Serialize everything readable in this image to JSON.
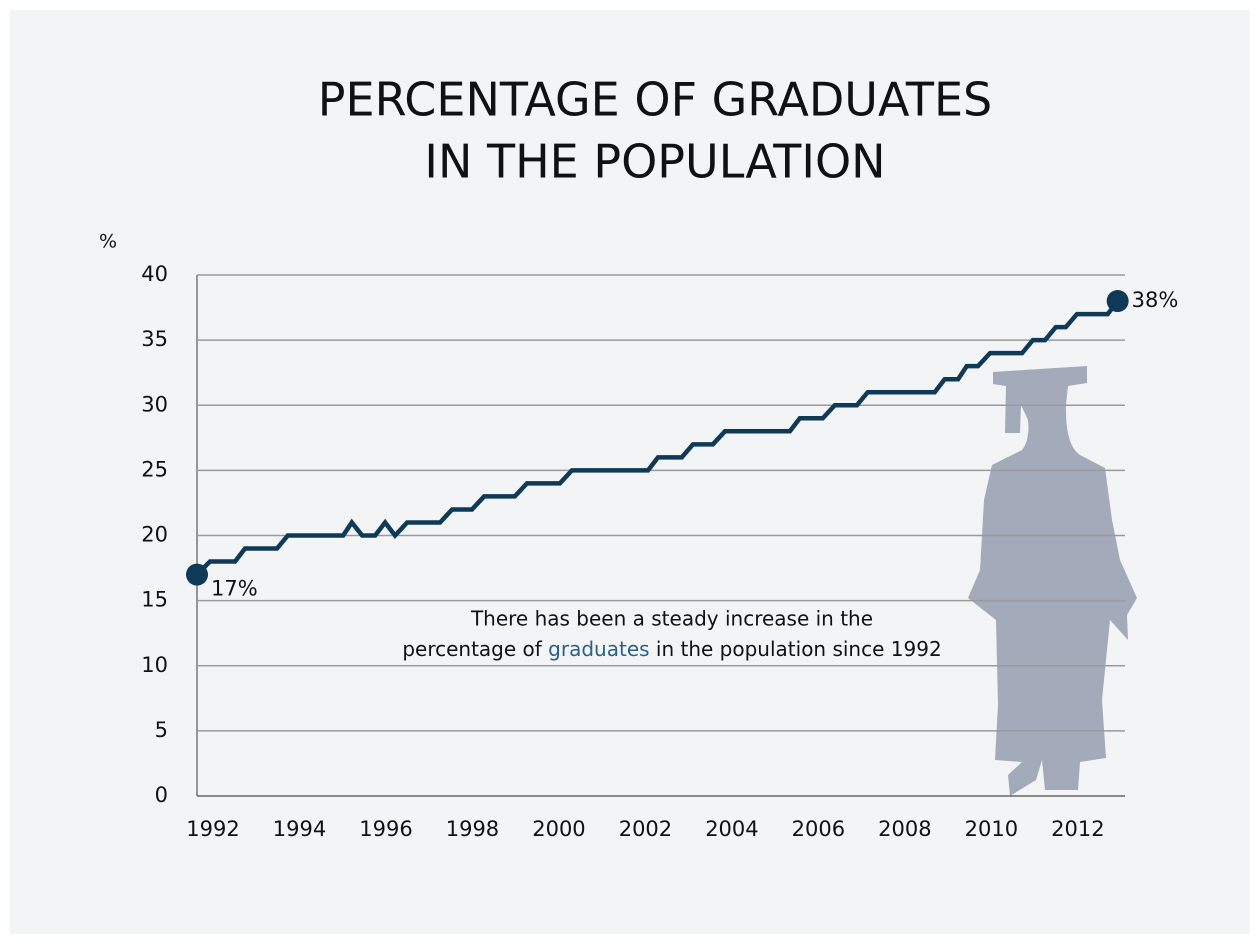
{
  "chart_data": {
    "type": "line",
    "title": [
      "PERCENTAGE OF GRADUATES",
      "IN THE POPULATION"
    ],
    "y_label": "%",
    "annotation": [
      "There has been a steady increase in the",
      "percentage of ",
      "graduates",
      " in the population since 1992"
    ],
    "x": [
      1991.63,
      1991.93,
      1992.51,
      1992.74,
      1993.48,
      1993.73,
      1995.01,
      1995.21,
      1995.45,
      1995.75,
      1995.98,
      1996.21,
      1996.49,
      1997.25,
      1997.53,
      1997.99,
      1998.27,
      1998.98,
      1999.26,
      2000.02,
      2000.3,
      2002.06,
      2002.29,
      2002.84,
      2003.1,
      2003.56,
      2003.84,
      2005.34,
      2005.57,
      2006.1,
      2006.38,
      2006.89,
      2007.14,
      2008.69,
      2008.92,
      2009.23,
      2009.43,
      2009.69,
      2009.97,
      2010.71,
      2010.96,
      2011.24,
      2011.49,
      2011.72,
      2011.98,
      2012.69,
      2012.92
    ],
    "series": [
      {
        "color": "#0f3a57",
        "values": [
          17,
          18,
          18,
          19,
          19,
          20,
          20,
          21,
          20,
          20,
          21,
          20,
          21,
          21,
          22,
          22,
          23,
          23,
          24,
          24,
          25,
          25,
          26,
          26,
          27,
          27,
          28,
          28,
          29,
          29,
          30,
          30,
          31,
          31,
          32,
          32,
          33,
          33,
          34,
          34,
          35,
          35,
          36,
          36,
          37,
          37,
          38
        ],
        "value_labels": [
          "17%",
          null,
          null,
          null,
          null,
          null,
          null,
          null,
          null,
          null,
          null,
          null,
          null,
          null,
          null,
          null,
          null,
          null,
          null,
          null,
          null,
          null,
          null,
          null,
          null,
          null,
          null,
          null,
          null,
          null,
          null,
          null,
          null,
          null,
          null,
          null,
          null,
          null,
          null,
          null,
          null,
          null,
          null,
          null,
          null,
          null,
          "38%"
        ]
      }
    ],
    "xlim": [
      1991.63,
      2013.09
    ],
    "xticks": [
      1992,
      1994,
      1996,
      1998,
      2000,
      2002,
      2004,
      2006,
      2008,
      2010,
      2012
    ],
    "ylim": [
      0,
      40
    ],
    "yticks": [
      0,
      5,
      10,
      15,
      20,
      25,
      30,
      35,
      40
    ],
    "grid": true,
    "highlight_color": "#2a5f86"
  }
}
